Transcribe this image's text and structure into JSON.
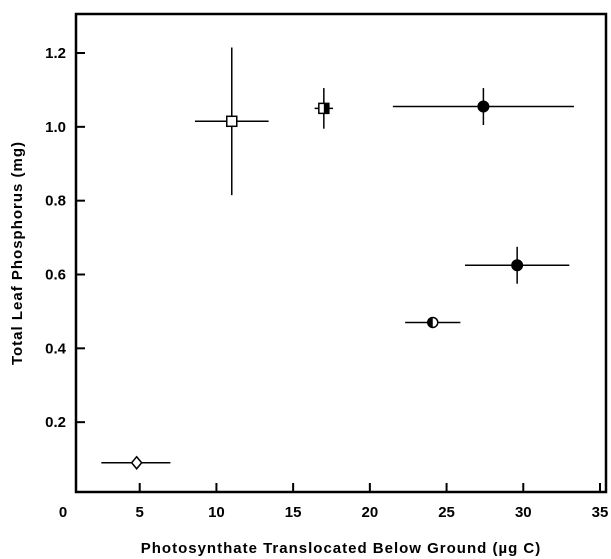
{
  "chart_data": {
    "type": "scatter",
    "title": "",
    "xlabel": "Photosynthate Translocated Below Ground (µg C)",
    "ylabel": "Total Leaf Phosphorus (mg)",
    "xlim": [
      0,
      36
    ],
    "ylim": [
      0,
      1.3
    ],
    "x_ticks": [
      0,
      5,
      10,
      15,
      20,
      25,
      30,
      35
    ],
    "y_ticks": [
      0.2,
      0.4,
      0.6,
      0.8,
      1.0,
      1.2
    ],
    "x_tick_labels": [
      "0",
      "5",
      "10",
      "15",
      "20",
      "25",
      "30",
      "35"
    ],
    "y_tick_labels": [
      "0.2",
      "0.4",
      "0.6",
      "0.8",
      "1.0",
      "1.2"
    ],
    "grid": false,
    "legend": "none",
    "points": [
      {
        "x": 4.8,
        "y": 0.09,
        "xerr_low": 2.3,
        "xerr_high": 2.2,
        "yerr_low": 0.0,
        "yerr_high": 0.0,
        "marker": "diamond-open"
      },
      {
        "x": 11.0,
        "y": 1.015,
        "xerr_low": 2.4,
        "xerr_high": 2.4,
        "yerr_low": 0.2,
        "yerr_high": 0.2,
        "marker": "square-open"
      },
      {
        "x": 17.0,
        "y": 1.05,
        "xerr_low": 0.6,
        "xerr_high": 0.6,
        "yerr_low": 0.055,
        "yerr_high": 0.055,
        "marker": "square-half"
      },
      {
        "x": 24.1,
        "y": 0.47,
        "xerr_low": 1.8,
        "xerr_high": 1.8,
        "yerr_low": 0.0,
        "yerr_high": 0.0,
        "marker": "circle-half"
      },
      {
        "x": 27.4,
        "y": 1.055,
        "xerr_low": 5.9,
        "xerr_high": 5.9,
        "yerr_low": 0.05,
        "yerr_high": 0.05,
        "marker": "circle-filled"
      },
      {
        "x": 29.6,
        "y": 0.625,
        "xerr_low": 3.4,
        "xerr_high": 3.4,
        "yerr_low": 0.05,
        "yerr_high": 0.05,
        "marker": "circle-filled"
      }
    ]
  }
}
